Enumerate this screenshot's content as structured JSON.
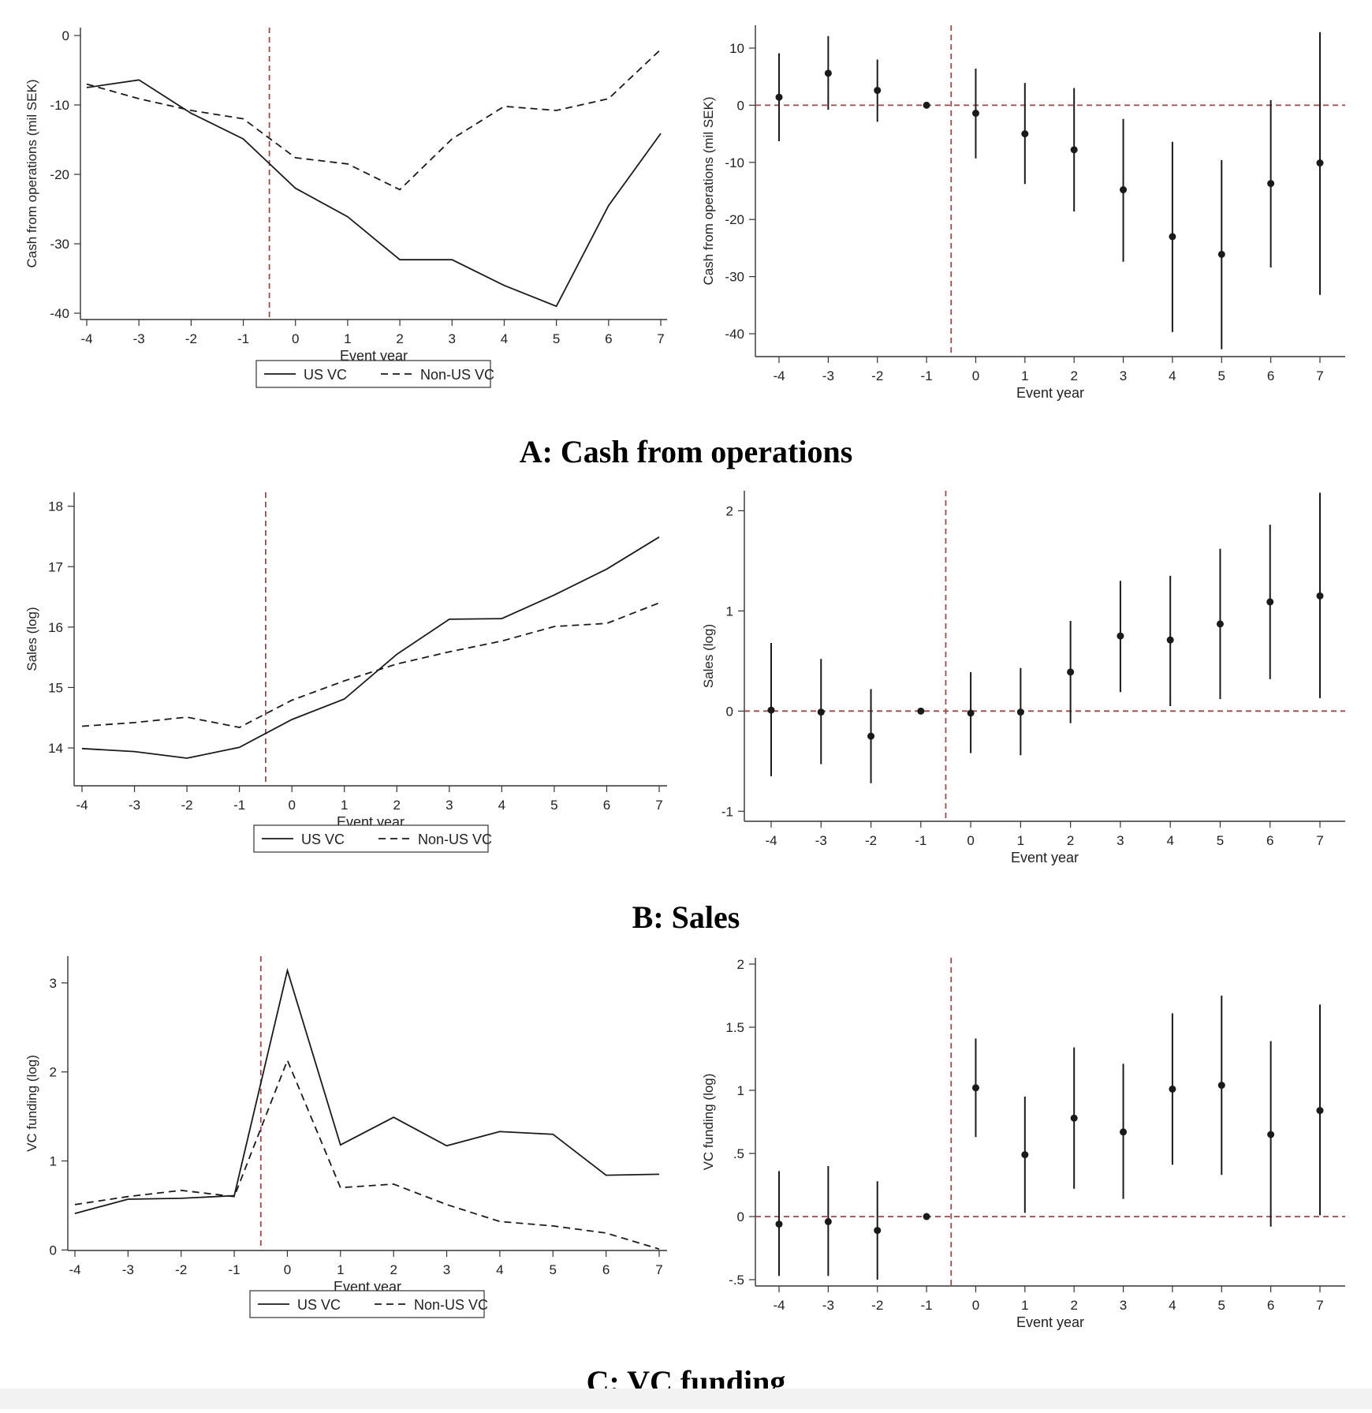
{
  "panels": [
    {
      "title": "A: Cash from operations"
    },
    {
      "title": "B: Sales"
    },
    {
      "title": "C: VC funding"
    }
  ],
  "colors": {
    "series_line": "#1a1a1a",
    "reference_line": "#9a4a4a",
    "axis": "#333333"
  },
  "chart_data": [
    {
      "type": "line",
      "xlabel": "Event year",
      "ylabel": "Cash from operations (mil SEK)",
      "xlim": [
        -4,
        7
      ],
      "ylim": [
        -40,
        0
      ],
      "yticks": [
        0,
        -10,
        -20,
        -30,
        -40
      ],
      "ytick_labels": [
        "0",
        "-10",
        "-20",
        "-30",
        "-40"
      ],
      "x": [
        -4,
        -3,
        -2,
        -1,
        0,
        1,
        2,
        3,
        4,
        5,
        6,
        7
      ],
      "vline": -0.5,
      "series": [
        {
          "name": "US VC",
          "style": "solid",
          "values": [
            -7.5,
            -6.4,
            -11.2,
            -14.9,
            -22.0,
            -26.1,
            -32.3,
            -32.3,
            -36.0,
            -39.0,
            -24.5,
            -14.1
          ]
        },
        {
          "name": "Non-US VC",
          "style": "dashed",
          "values": [
            -7.0,
            -9.1,
            -10.8,
            -12.0,
            -17.6,
            -18.5,
            -22.2,
            -14.9,
            -10.2,
            -10.8,
            -9.1,
            -2.0
          ]
        }
      ],
      "legend": "bottom"
    },
    {
      "type": "scatter",
      "xlabel": "Event year",
      "ylabel": "Cash from operations (mil SEK)",
      "xlim": [
        -4,
        7
      ],
      "ylim": [
        -44,
        14
      ],
      "yticks": [
        10,
        0,
        -10,
        -20,
        -30,
        -40
      ],
      "ytick_labels": [
        "10",
        "0",
        "-10",
        "-20",
        "-30",
        "-40"
      ],
      "x": [
        -4,
        -3,
        -2,
        -1,
        0,
        1,
        2,
        3,
        4,
        5,
        6,
        7
      ],
      "values": [
        1.4,
        5.6,
        2.6,
        0,
        -1.4,
        -5.0,
        -7.8,
        -14.8,
        -23.0,
        -26.1,
        -13.7,
        -10.1
      ],
      "ci_low": [
        -6.3,
        -0.8,
        -2.9,
        0,
        -9.3,
        -13.8,
        -18.6,
        -27.4,
        -39.7,
        -42.7,
        -28.4,
        -33.2
      ],
      "ci_high": [
        9.1,
        12.1,
        8.0,
        0,
        6.4,
        3.9,
        3.0,
        -2.4,
        -6.4,
        -9.6,
        0.9,
        12.8
      ],
      "hline": 0,
      "vline": -0.5
    },
    {
      "type": "line",
      "xlabel": "Event year",
      "ylabel": "Sales (log)",
      "xlim": [
        -4,
        7
      ],
      "ylim": [
        13.7,
        18.1
      ],
      "yticks": [
        18,
        17,
        16,
        15,
        14
      ],
      "ytick_labels": [
        "18",
        "17",
        "16",
        "15",
        "14"
      ],
      "x": [
        -4,
        -3,
        -2,
        -1,
        0,
        1,
        2,
        3,
        4,
        5,
        6,
        7
      ],
      "vline": -0.5,
      "series": [
        {
          "name": "US VC",
          "style": "solid",
          "values": [
            13.99,
            13.94,
            13.83,
            14.01,
            14.47,
            14.81,
            15.55,
            16.13,
            16.14,
            16.53,
            16.96,
            17.49
          ]
        },
        {
          "name": "Non-US VC",
          "style": "dashed",
          "values": [
            14.36,
            14.42,
            14.51,
            14.34,
            14.79,
            15.11,
            15.39,
            15.59,
            15.77,
            16.01,
            16.06,
            16.4
          ]
        }
      ],
      "legend": "bottom"
    },
    {
      "type": "scatter",
      "xlabel": "Event year",
      "ylabel": "Sales (log)",
      "xlim": [
        -4,
        7
      ],
      "ylim": [
        -1.1,
        2.2
      ],
      "yticks": [
        2,
        1,
        0,
        -1
      ],
      "ytick_labels": [
        "2",
        "1",
        "0",
        "-1"
      ],
      "x": [
        -4,
        -3,
        -2,
        -1,
        0,
        1,
        2,
        3,
        4,
        5,
        6,
        7
      ],
      "values": [
        0.01,
        -0.01,
        -0.25,
        0,
        -0.02,
        -0.01,
        0.39,
        0.75,
        0.71,
        0.87,
        1.09,
        1.15
      ],
      "ci_low": [
        -0.65,
        -0.53,
        -0.72,
        0,
        -0.42,
        -0.44,
        -0.12,
        0.19,
        0.05,
        0.12,
        0.32,
        0.13
      ],
      "ci_high": [
        0.68,
        0.52,
        0.22,
        0,
        0.39,
        0.43,
        0.9,
        1.3,
        1.35,
        1.62,
        1.86,
        2.18
      ],
      "hline": 0,
      "vline": -0.5
    },
    {
      "type": "line",
      "xlabel": "Event year",
      "ylabel": "VC funding (log)",
      "xlim": [
        -4,
        7
      ],
      "ylim": [
        -0.05,
        3.3
      ],
      "yticks": [
        3,
        2,
        1,
        0
      ],
      "ytick_labels": [
        "3",
        "2",
        "1",
        "0"
      ],
      "x": [
        -4,
        -3,
        -2,
        -1,
        0,
        1,
        2,
        3,
        4,
        5,
        6,
        7
      ],
      "vline": -0.5,
      "series": [
        {
          "name": "US VC",
          "style": "solid",
          "values": [
            0.41,
            0.57,
            0.58,
            0.61,
            3.14,
            1.18,
            1.49,
            1.17,
            1.33,
            1.3,
            0.84,
            0.85
          ]
        },
        {
          "name": "Non-US VC",
          "style": "dashed",
          "values": [
            0.51,
            0.6,
            0.67,
            0.6,
            2.13,
            0.7,
            0.74,
            0.51,
            0.32,
            0.27,
            0.19,
            0.01
          ]
        }
      ],
      "legend": "bottom"
    },
    {
      "type": "scatter",
      "xlabel": "Event year",
      "ylabel": "VC funding (log)",
      "xlim": [
        -4,
        7
      ],
      "ylim": [
        -0.55,
        2.05
      ],
      "yticks": [
        2,
        1.5,
        1,
        0.5,
        0,
        -0.5
      ],
      "ytick_labels": [
        "2",
        "1.5",
        "1",
        ".5",
        "0",
        "-.5"
      ],
      "x": [
        -4,
        -3,
        -2,
        -1,
        0,
        1,
        2,
        3,
        4,
        5,
        6,
        7
      ],
      "values": [
        -0.06,
        -0.04,
        -0.11,
        0,
        1.02,
        0.49,
        0.78,
        0.67,
        1.01,
        1.04,
        0.65,
        0.84
      ],
      "ci_low": [
        -0.47,
        -0.47,
        -0.5,
        0,
        0.63,
        0.03,
        0.22,
        0.14,
        0.41,
        0.33,
        -0.08,
        0.01
      ],
      "ci_high": [
        0.36,
        0.4,
        0.28,
        0,
        1.41,
        0.95,
        1.34,
        1.21,
        1.61,
        1.75,
        1.39,
        1.68
      ],
      "hline": 0,
      "vline": -0.5
    }
  ]
}
